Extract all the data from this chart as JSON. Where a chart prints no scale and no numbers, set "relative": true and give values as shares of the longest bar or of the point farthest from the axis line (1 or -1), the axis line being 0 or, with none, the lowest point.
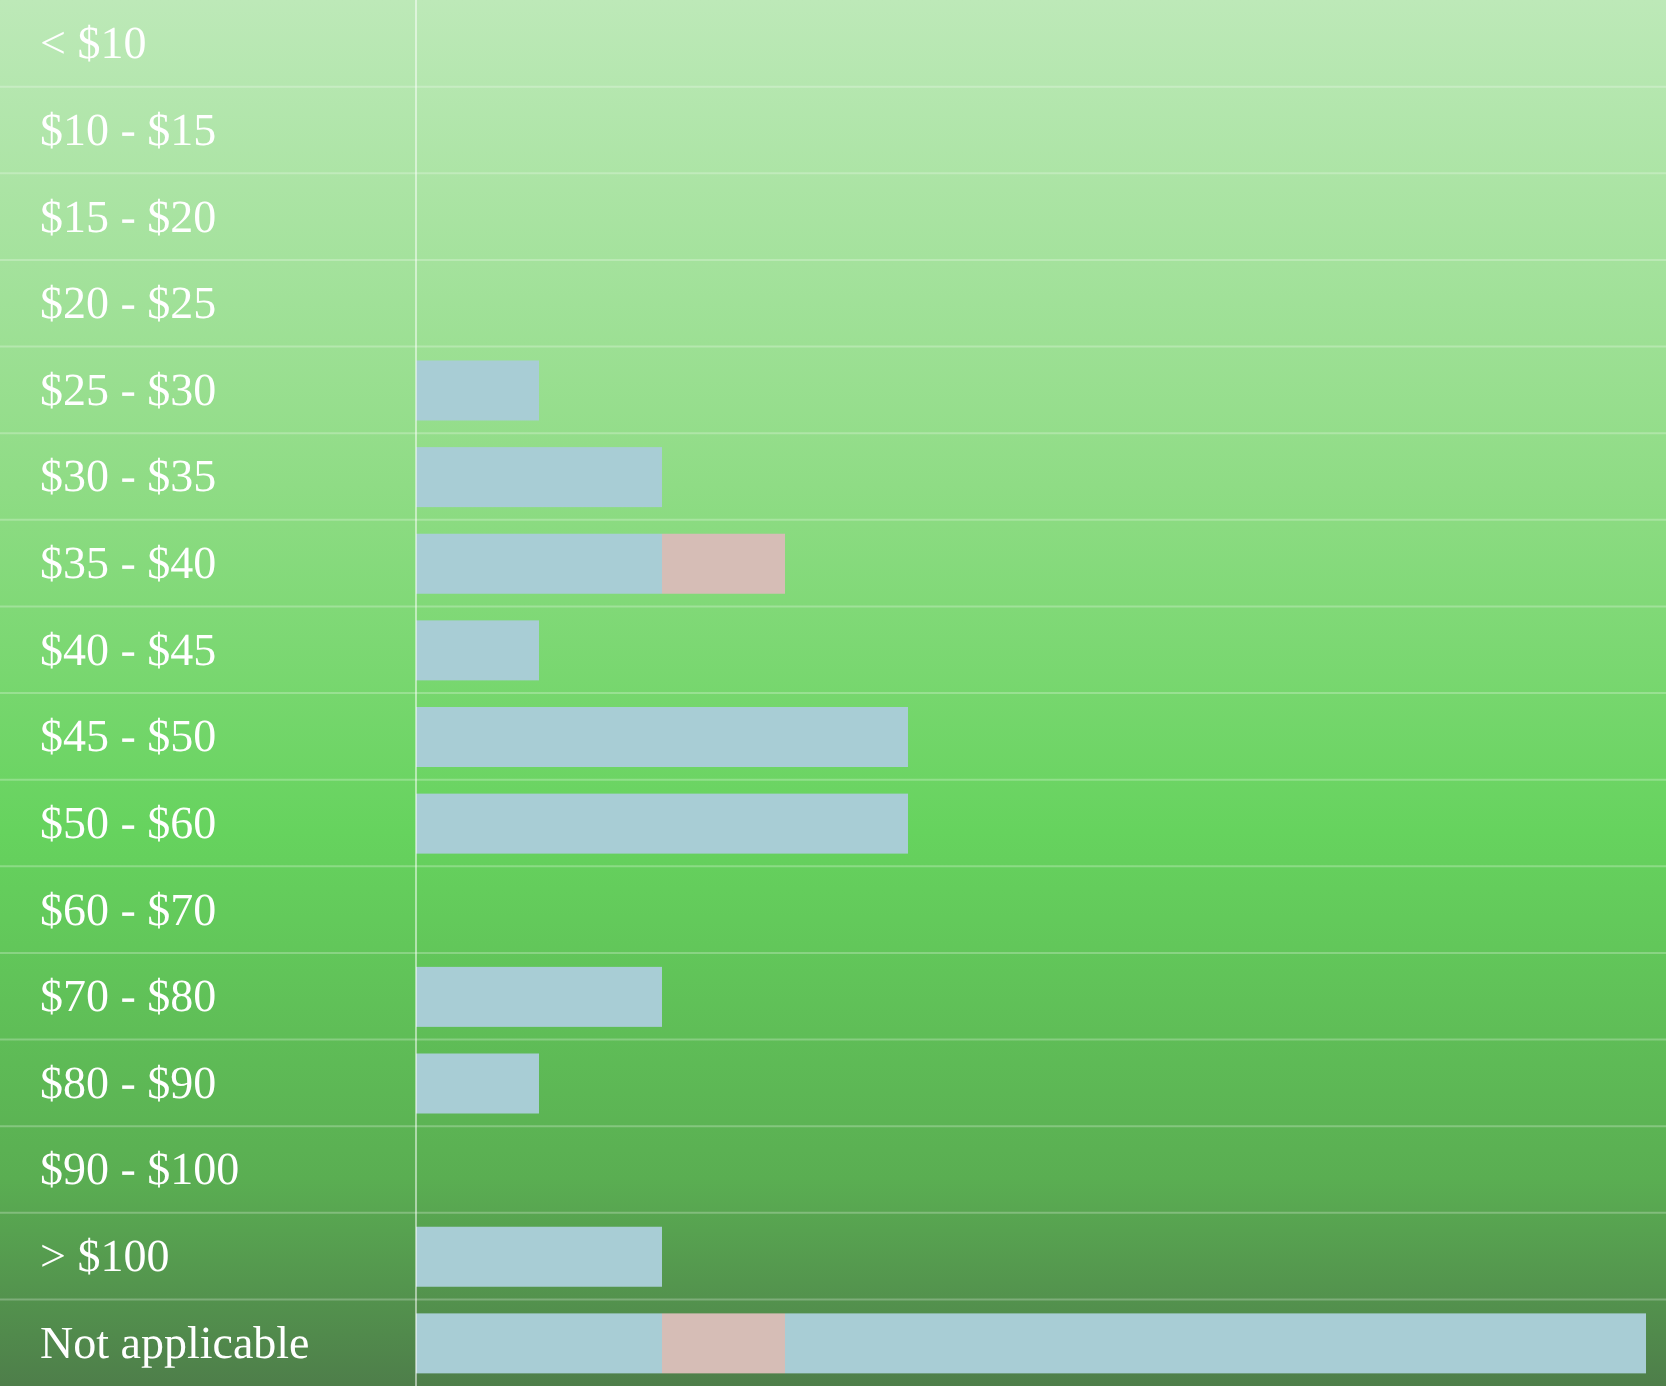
{
  "chart_data": {
    "type": "bar",
    "orientation": "horizontal",
    "stacked": true,
    "relative": true,
    "grid": false,
    "legend": false,
    "categories": [
      "< $10",
      "$10 - $15",
      "$15 - $20",
      "$20 - $25",
      "$25 - $30",
      "$30 - $35",
      "$35 - $40",
      "$40 - $45",
      "$45 - $50",
      "$50 - $60",
      "$60 - $70",
      "$70 - $80",
      "$80 - $90",
      "$90 - $100",
      "> $100",
      "Not applicable"
    ],
    "series": [
      {
        "color": "#a8cdd5",
        "values": [
          null,
          null,
          null,
          null,
          0.1,
          0.2,
          0.2,
          0.1,
          0.4,
          0.4,
          null,
          0.2,
          0.1,
          null,
          0.2,
          0.2
        ]
      },
      {
        "color": "#d6bdb6",
        "values": [
          null,
          null,
          null,
          null,
          null,
          null,
          0.1,
          null,
          null,
          null,
          null,
          null,
          null,
          null,
          null,
          0.1
        ]
      },
      {
        "color": "#a8cdd5",
        "values": [
          null,
          null,
          null,
          null,
          null,
          null,
          null,
          null,
          null,
          null,
          null,
          null,
          null,
          null,
          null,
          0.7
        ]
      }
    ]
  }
}
